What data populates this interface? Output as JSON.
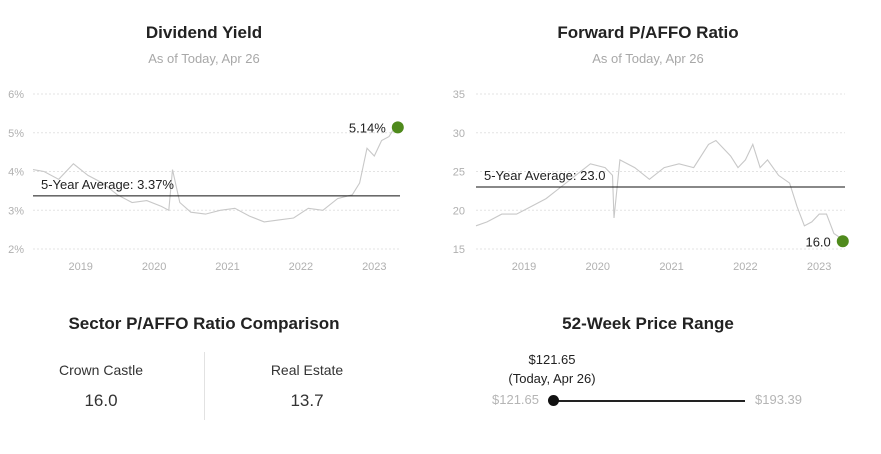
{
  "dividend_yield": {
    "title": "Dividend Yield",
    "subtitle": "As of Today, Apr 26",
    "average_label": "5-Year Average: 3.37%",
    "current_label": "5.14%"
  },
  "pafffo_ratio": {
    "title": "Forward P/AFFO Ratio",
    "subtitle": "As of Today, Apr 26",
    "average_label": "5-Year Average: 23.0",
    "current_label": "16.0"
  },
  "sector_comparison": {
    "title": "Sector P/AFFO Ratio Comparison",
    "items": [
      {
        "label": "Crown Castle",
        "value": "16.0"
      },
      {
        "label": "Real Estate",
        "value": "13.7"
      }
    ]
  },
  "price_range": {
    "title": "52-Week Price Range",
    "current_price": "$121.65",
    "current_note": "(Today, Apr 26)",
    "low_label": "$121.65",
    "high_label": "$193.39",
    "low": 121.65,
    "high": 193.39,
    "current": 121.65
  },
  "chart_data": [
    {
      "type": "line",
      "title": "Dividend Yield",
      "subtitle": "As of Today, Apr 26",
      "xlabel": "",
      "ylabel": "",
      "xlim": [
        2018.35,
        2023.35
      ],
      "ylim": [
        2,
        6
      ],
      "x_ticks": [
        2019,
        2020,
        2021,
        2022,
        2023
      ],
      "x_tick_labels": [
        "2019",
        "2020",
        "2021",
        "2022",
        "2023"
      ],
      "y_ticks": [
        2,
        3,
        4,
        5,
        6
      ],
      "y_tick_labels": [
        "2%",
        "3%",
        "4%",
        "5%",
        "6%"
      ],
      "grid": "horizontal dashed",
      "series": [
        {
          "x": [
            2018.35,
            2018.5,
            2018.7,
            2018.9,
            2019.1,
            2019.3,
            2019.5,
            2019.7,
            2019.9,
            2020.1,
            2020.2,
            2020.25,
            2020.35,
            2020.5,
            2020.7,
            2020.9,
            2021.1,
            2021.3,
            2021.5,
            2021.7,
            2021.9,
            2022.1,
            2022.3,
            2022.5,
            2022.7,
            2022.8,
            2022.9,
            2023.0,
            2023.1,
            2023.2,
            2023.28
          ],
          "y": [
            4.05,
            4.0,
            3.8,
            4.2,
            3.9,
            3.7,
            3.4,
            3.2,
            3.25,
            3.1,
            3.0,
            4.05,
            3.2,
            2.95,
            2.9,
            3.0,
            3.05,
            2.85,
            2.7,
            2.75,
            2.8,
            3.05,
            3.0,
            3.3,
            3.4,
            3.7,
            4.6,
            4.4,
            4.8,
            4.9,
            5.14
          ]
        }
      ],
      "reference_line": {
        "value": 3.37,
        "label": "5-Year Average: 3.37%"
      },
      "current_point": {
        "x": 2023.32,
        "y": 5.14,
        "label": "5.14%",
        "color": "#4f8a1c"
      },
      "line_color": "#c8c8c8"
    },
    {
      "type": "line",
      "title": "Forward P/AFFO Ratio",
      "subtitle": "As of Today, Apr 26",
      "xlabel": "",
      "ylabel": "",
      "xlim": [
        2018.35,
        2023.35
      ],
      "ylim": [
        15,
        35
      ],
      "x_ticks": [
        2019,
        2020,
        2021,
        2022,
        2023
      ],
      "x_tick_labels": [
        "2019",
        "2020",
        "2021",
        "2022",
        "2023"
      ],
      "y_ticks": [
        15,
        20,
        25,
        30,
        35
      ],
      "y_tick_labels": [
        "15",
        "20",
        "25",
        "30",
        "35"
      ],
      "grid": "horizontal dashed",
      "series": [
        {
          "x": [
            2018.35,
            2018.5,
            2018.7,
            2018.9,
            2019.1,
            2019.3,
            2019.5,
            2019.7,
            2019.9,
            2020.1,
            2020.2,
            2020.22,
            2020.3,
            2020.5,
            2020.7,
            2020.9,
            2021.1,
            2021.3,
            2021.5,
            2021.6,
            2021.8,
            2021.9,
            2022.0,
            2022.1,
            2022.2,
            2022.3,
            2022.45,
            2022.6,
            2022.7,
            2022.8,
            2022.9,
            2023.0,
            2023.1,
            2023.2,
            2023.28
          ],
          "y": [
            18.0,
            18.5,
            19.5,
            19.5,
            20.5,
            21.5,
            23.0,
            24.5,
            26.0,
            25.5,
            24.5,
            19.0,
            26.5,
            25.5,
            24.0,
            25.5,
            26.0,
            25.5,
            28.5,
            29.0,
            27.0,
            25.5,
            26.5,
            28.5,
            25.5,
            26.5,
            24.5,
            23.5,
            20.5,
            18.0,
            18.5,
            19.5,
            19.5,
            17.0,
            16.5
          ]
        }
      ],
      "reference_line": {
        "value": 23.0,
        "label": "5-Year Average: 23.0"
      },
      "current_point": {
        "x": 2023.32,
        "y": 16.0,
        "label": "16.0",
        "color": "#4f8a1c"
      },
      "line_color": "#c8c8c8"
    }
  ]
}
